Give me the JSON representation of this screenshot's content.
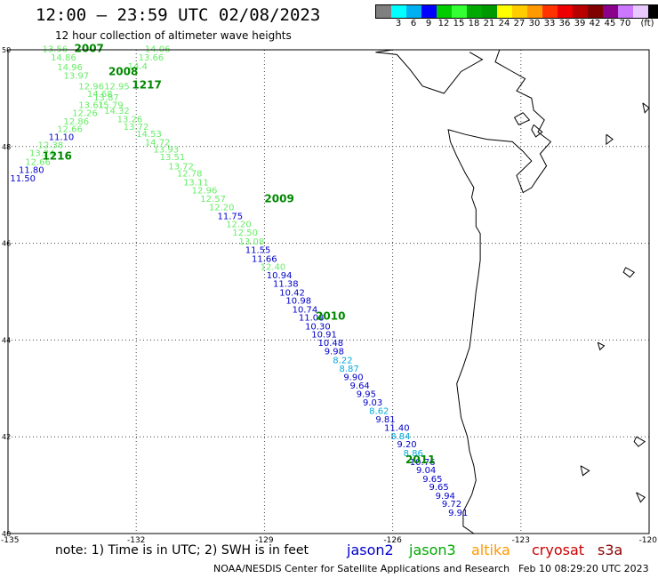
{
  "title": "12:00 – 23:59 UTC 02/08/2023",
  "subtitle": "12 hour collection of altimeter wave heights",
  "legend": {
    "unit": "(ft)",
    "colors": [
      "#7f7f7f",
      "#00ffff",
      "#00b0f0",
      "#0000ff",
      "#00cc00",
      "#33ff33",
      "#00aa00",
      "#009900",
      "#ffff00",
      "#ffcc00",
      "#ff9900",
      "#ff3300",
      "#ee0000",
      "#b80000",
      "#800000",
      "#8b008b",
      "#cc77ff",
      "#e8c8ff",
      "#000000"
    ],
    "labels": [
      "3",
      "6",
      "9",
      "12",
      "15",
      "18",
      "21",
      "24",
      "27",
      "30",
      "33",
      "36",
      "39",
      "42",
      "45",
      "70"
    ]
  },
  "axes": {
    "lat_labels": [
      "50",
      "48",
      "46",
      "44",
      "42",
      "40"
    ],
    "lon_labels": [
      "-135",
      "-132",
      "-129",
      "-126",
      "-123",
      "-120"
    ]
  },
  "swath_times": [
    {
      "label": "2007",
      "lon": -133.45,
      "lat": 49.95
    },
    {
      "label": "2008",
      "lon": -132.65,
      "lat": 49.48
    },
    {
      "label": "1217",
      "lon": -132.1,
      "lat": 49.2
    },
    {
      "label": "1216",
      "lon": -134.2,
      "lat": 47.73
    },
    {
      "label": "2009",
      "lon": -129.0,
      "lat": 46.85
    },
    {
      "label": "2010",
      "lon": -127.8,
      "lat": 44.42
    },
    {
      "label": "2011",
      "lon": -125.7,
      "lat": 41.45
    }
  ],
  "wave_heights": [
    {
      "v": "13.56",
      "lon": -134.2,
      "lat": 49.95,
      "c": "#66ee66"
    },
    {
      "v": "14.86",
      "lon": -134.0,
      "lat": 49.78,
      "c": "#66ee66"
    },
    {
      "v": "14.96",
      "lon": -133.85,
      "lat": 49.58,
      "c": "#66ee66"
    },
    {
      "v": "13.97",
      "lon": -133.7,
      "lat": 49.4,
      "c": "#66ee66"
    },
    {
      "v": "12.96",
      "lon": -133.35,
      "lat": 49.18,
      "c": "#66ee66"
    },
    {
      "v": "14.06",
      "lon": -131.8,
      "lat": 49.95,
      "c": "#66ee66"
    },
    {
      "v": "13.66",
      "lon": -131.95,
      "lat": 49.78,
      "c": "#66ee66"
    },
    {
      "v": "14.4",
      "lon": -132.2,
      "lat": 49.6,
      "c": "#66ee66"
    },
    {
      "v": "12.95",
      "lon": -132.75,
      "lat": 49.18,
      "c": "#66ee66"
    },
    {
      "v": "14.68",
      "lon": -133.15,
      "lat": 49.03,
      "c": "#66ee66"
    },
    {
      "v": "13.87",
      "lon": -133.0,
      "lat": 48.95,
      "c": "#66ee66"
    },
    {
      "v": "13.61",
      "lon": -133.35,
      "lat": 48.8,
      "c": "#66ee66"
    },
    {
      "v": "15.79",
      "lon": -132.9,
      "lat": 48.8,
      "c": "#66ee66"
    },
    {
      "v": "14.32",
      "lon": -132.75,
      "lat": 48.68,
      "c": "#66ee66"
    },
    {
      "v": "12.26",
      "lon": -133.5,
      "lat": 48.63,
      "c": "#66ee66"
    },
    {
      "v": "13.26",
      "lon": -132.45,
      "lat": 48.5,
      "c": "#66ee66"
    },
    {
      "v": "12.86",
      "lon": -133.7,
      "lat": 48.46,
      "c": "#66ee66"
    },
    {
      "v": "13.72",
      "lon": -132.3,
      "lat": 48.35,
      "c": "#66ee66"
    },
    {
      "v": "12.66",
      "lon": -133.85,
      "lat": 48.3,
      "c": "#66ee66"
    },
    {
      "v": "14.53",
      "lon": -132.0,
      "lat": 48.2,
      "c": "#66ee66"
    },
    {
      "v": "11.10",
      "lon": -134.05,
      "lat": 48.13,
      "c": "#0000cc"
    },
    {
      "v": "14.72",
      "lon": -131.8,
      "lat": 48.02,
      "c": "#66ee66"
    },
    {
      "v": "12.38",
      "lon": -134.3,
      "lat": 47.97,
      "c": "#66ee66"
    },
    {
      "v": "13.93",
      "lon": -131.6,
      "lat": 47.88,
      "c": "#66ee66"
    },
    {
      "v": "13.24",
      "lon": -134.5,
      "lat": 47.8,
      "c": "#66ee66"
    },
    {
      "v": "13.51",
      "lon": -131.45,
      "lat": 47.72,
      "c": "#66ee66"
    },
    {
      "v": "12.66",
      "lon": -134.6,
      "lat": 47.62,
      "c": "#66ee66"
    },
    {
      "v": "13.72",
      "lon": -131.25,
      "lat": 47.53,
      "c": "#66ee66"
    },
    {
      "v": "11.80",
      "lon": -134.75,
      "lat": 47.45,
      "c": "#0000cc"
    },
    {
      "v": "12.78",
      "lon": -131.05,
      "lat": 47.38,
      "c": "#66ee66"
    },
    {
      "v": "11.50",
      "lon": -134.95,
      "lat": 47.28,
      "c": "#0000cc"
    },
    {
      "v": "13.11",
      "lon": -130.9,
      "lat": 47.2,
      "c": "#66ee66"
    },
    {
      "v": "12.96",
      "lon": -130.7,
      "lat": 47.03,
      "c": "#66ee66"
    },
    {
      "v": "12.57",
      "lon": -130.5,
      "lat": 46.86,
      "c": "#66ee66"
    },
    {
      "v": "12.20",
      "lon": -130.3,
      "lat": 46.68,
      "c": "#66ee66"
    },
    {
      "v": "11.75",
      "lon": -130.1,
      "lat": 46.5,
      "c": "#0000cc"
    },
    {
      "v": "12.20",
      "lon": -129.9,
      "lat": 46.33,
      "c": "#66ee66"
    },
    {
      "v": "12.50",
      "lon": -129.75,
      "lat": 46.16,
      "c": "#66ee66"
    },
    {
      "v": "13.08",
      "lon": -129.6,
      "lat": 45.97,
      "c": "#66ee66"
    },
    {
      "v": "11.55",
      "lon": -129.45,
      "lat": 45.8,
      "c": "#0000cc"
    },
    {
      "v": "11.66",
      "lon": -129.3,
      "lat": 45.62,
      "c": "#0000cc"
    },
    {
      "v": "12.40",
      "lon": -129.1,
      "lat": 45.45,
      "c": "#66ee66"
    },
    {
      "v": "10.94",
      "lon": -128.95,
      "lat": 45.28,
      "c": "#0000cc"
    },
    {
      "v": "11.38",
      "lon": -128.8,
      "lat": 45.1,
      "c": "#0000cc"
    },
    {
      "v": "10.42",
      "lon": -128.65,
      "lat": 44.92,
      "c": "#0000cc"
    },
    {
      "v": "10.98",
      "lon": -128.5,
      "lat": 44.75,
      "c": "#0000cc"
    },
    {
      "v": "10.74",
      "lon": -128.35,
      "lat": 44.57,
      "c": "#0000cc"
    },
    {
      "v": "11.08",
      "lon": -128.2,
      "lat": 44.4,
      "c": "#0000cc"
    },
    {
      "v": "10.30",
      "lon": -128.05,
      "lat": 44.22,
      "c": "#0000cc"
    },
    {
      "v": "10.91",
      "lon": -127.9,
      "lat": 44.05,
      "c": "#0000cc"
    },
    {
      "v": "10.48",
      "lon": -127.75,
      "lat": 43.88,
      "c": "#0000cc"
    },
    {
      "v": "9.98",
      "lon": -127.6,
      "lat": 43.7,
      "c": "#0000cc"
    },
    {
      "v": "8.22",
      "lon": -127.4,
      "lat": 43.52,
      "c": "#00aadd"
    },
    {
      "v": "8.87",
      "lon": -127.25,
      "lat": 43.35,
      "c": "#00aadd"
    },
    {
      "v": "9.90",
      "lon": -127.15,
      "lat": 43.17,
      "c": "#0000cc"
    },
    {
      "v": "9.64",
      "lon": -127.0,
      "lat": 43.0,
      "c": "#0000cc"
    },
    {
      "v": "9.95",
      "lon": -126.85,
      "lat": 42.82,
      "c": "#0000cc"
    },
    {
      "v": "9.03",
      "lon": -126.7,
      "lat": 42.65,
      "c": "#0000cc"
    },
    {
      "v": "8.62",
      "lon": -126.55,
      "lat": 42.47,
      "c": "#00aadd"
    },
    {
      "v": "9.81",
      "lon": -126.4,
      "lat": 42.3,
      "c": "#0000cc"
    },
    {
      "v": "11.40",
      "lon": -126.2,
      "lat": 42.12,
      "c": "#0000cc"
    },
    {
      "v": "8.84",
      "lon": -126.05,
      "lat": 41.95,
      "c": "#00aadd"
    },
    {
      "v": "9.20",
      "lon": -125.9,
      "lat": 41.78,
      "c": "#0000cc"
    },
    {
      "v": "8.86",
      "lon": -125.75,
      "lat": 41.6,
      "c": "#00aadd"
    },
    {
      "v": "10.76",
      "lon": -125.6,
      "lat": 41.42,
      "c": "#0000cc"
    },
    {
      "v": "9.04",
      "lon": -125.45,
      "lat": 41.25,
      "c": "#0000cc"
    },
    {
      "v": "9.65",
      "lon": -125.3,
      "lat": 41.07,
      "c": "#0000cc"
    },
    {
      "v": "9.65",
      "lon": -125.15,
      "lat": 40.9,
      "c": "#0000cc"
    },
    {
      "v": "9.94",
      "lon": -125.0,
      "lat": 40.72,
      "c": "#0000cc"
    },
    {
      "v": "9.72",
      "lon": -124.85,
      "lat": 40.55,
      "c": "#0000cc"
    },
    {
      "v": "9.91",
      "lon": -124.7,
      "lat": 40.37,
      "c": "#0000cc"
    }
  ],
  "footer": {
    "note": "note:  1) Time is in UTC;  2) SWH is in feet",
    "credit": "NOAA/NESDIS Center for Satellite Applications and Research",
    "date": "Feb 10 08:29:20 UTC 2023",
    "satellites": [
      {
        "name": "jason2",
        "color": "#0000cc"
      },
      {
        "name": "jason3",
        "color": "#00aa00"
      },
      {
        "name": "altika",
        "color": "#ff9900"
      },
      {
        "name": "cryosat",
        "color": "#cc0000"
      },
      {
        "name": "s3a",
        "color": "#8b0000"
      }
    ]
  }
}
